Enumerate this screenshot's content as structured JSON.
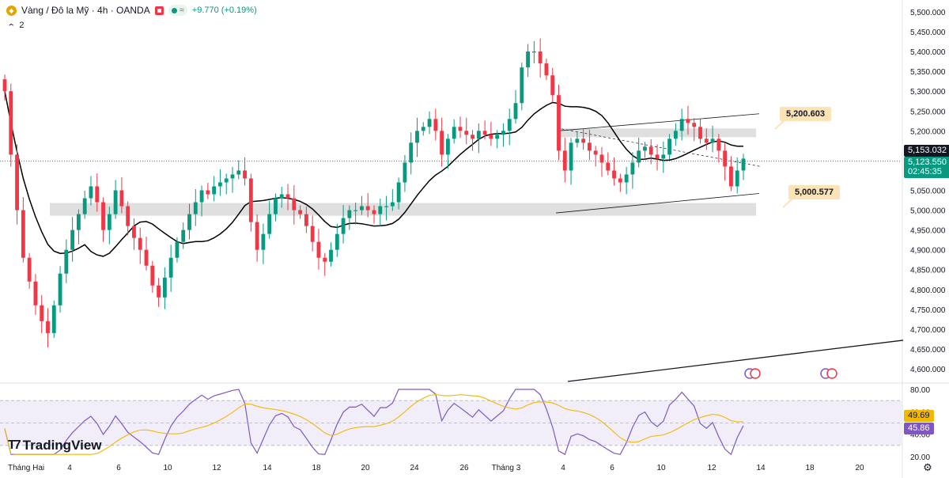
{
  "header": {
    "symbol": "Vàng / Đô la Mỹ · 4h · OANDA",
    "pill_icon": "wave-icon",
    "change": "+9.770 (+0.19%)",
    "indicator_count": "2"
  },
  "branding": {
    "logo_text": "TradingView"
  },
  "colors": {
    "up": "#089981",
    "down": "#f23645",
    "ma": "#000000",
    "rsi": "#7e57c2",
    "rsi_ma": "#f2b705"
  },
  "price_axis": {
    "labels": [
      "5,500.000",
      "5,450.000",
      "5,400.000",
      "5,350.000",
      "5,300.000",
      "5,250.000",
      "5,200.000",
      "5,150.000",
      "5,100.000",
      "5,050.000",
      "5,000.000",
      "4,950.000",
      "4,900.000",
      "4,850.000",
      "4,800.000",
      "4,750.000",
      "4,700.000",
      "4,650.000",
      "4,600.000"
    ],
    "last_price": "5,153.032",
    "current_price": "5,123.550",
    "countdown": "02:45:35"
  },
  "rsi_axis": {
    "labels": [
      "80.00",
      "60.00",
      "40.00",
      "20.00"
    ],
    "rsi_ma_value": "49.69",
    "rsi_value": "45.86"
  },
  "time_axis": {
    "labels": [
      "Tháng Hai",
      "4",
      "6",
      "10",
      "12",
      "14",
      "18",
      "20",
      "24",
      "26",
      "Tháng 3",
      "4",
      "6",
      "10",
      "12",
      "14",
      "18",
      "20"
    ]
  },
  "callouts": {
    "upper": "5,200.603",
    "lower": "5,000.577"
  },
  "chart_data": {
    "type": "candlestick",
    "title": "Vàng / Đô la Mỹ · 4h · OANDA",
    "price_range": [
      4580,
      5520
    ],
    "rsi_range": [
      20,
      80
    ],
    "zones": [
      {
        "from": 4986,
        "to": 5018
      },
      {
        "from": 5184,
        "to": 5206
      }
    ],
    "levels": {
      "upper": 5200.603,
      "lower": 5000.577,
      "last": 5153.032,
      "current": 5123.55
    },
    "rsi": {
      "value": 45.86,
      "ma": 49.69
    },
    "closes": [
      5300,
      5140,
      5000,
      4880,
      4820,
      4760,
      4720,
      4690,
      4760,
      4840,
      4900,
      4950,
      4990,
      5030,
      5060,
      5020,
      4950,
      4990,
      5050,
      5010,
      4960,
      4930,
      4900,
      4860,
      4810,
      4780,
      4830,
      4880,
      4920,
      4950,
      4990,
      5020,
      5050,
      5040,
      5060,
      5070,
      5080,
      5090,
      5100,
      5080,
      4970,
      4900,
      4940,
      4990,
      5030,
      5040,
      5030,
      5000,
      4990,
      4960,
      4920,
      4880,
      4870,
      4900,
      4940,
      4980,
      5000,
      5000,
      5010,
      5000,
      4990,
      5010,
      5010,
      5020,
      5070,
      5120,
      5170,
      5200,
      5210,
      5230,
      5200,
      5140,
      5180,
      5210,
      5200,
      5190,
      5180,
      5200,
      5190,
      5180,
      5190,
      5200,
      5230,
      5270,
      5360,
      5400,
      5400,
      5370,
      5340,
      5290,
      5150,
      5100,
      5170,
      5180,
      5170,
      5150,
      5140,
      5120,
      5100,
      5080,
      5070,
      5090,
      5120,
      5150,
      5160,
      5140,
      5130,
      5140,
      5180,
      5200,
      5230,
      5220,
      5210,
      5180,
      5170,
      5180,
      5150,
      5110,
      5060,
      5100,
      5130
    ]
  }
}
